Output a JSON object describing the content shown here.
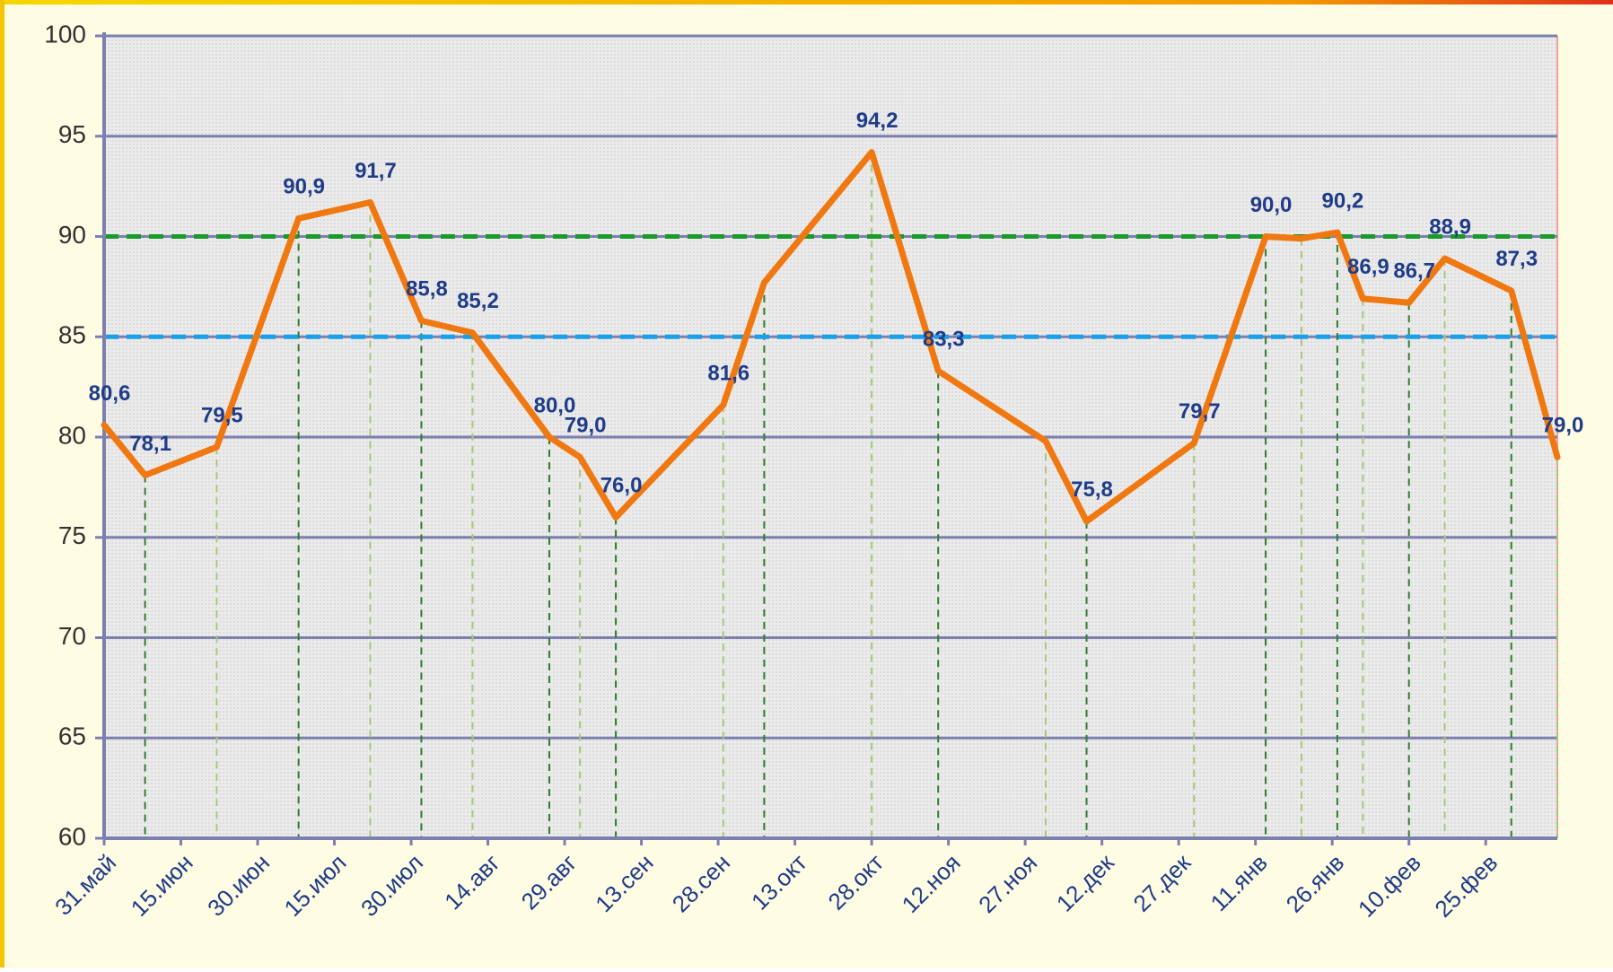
{
  "chart_data": {
    "type": "line",
    "x": [
      0,
      8,
      22,
      38,
      52,
      62,
      72,
      87,
      93,
      100,
      121,
      129,
      150,
      163,
      184,
      192,
      213,
      227,
      234,
      241,
      246,
      255,
      262,
      275,
      284
    ],
    "series": [
      {
        "color": "#f07810",
        "values": [
          80.6,
          78.1,
          79.5,
          90.9,
          91.7,
          85.8,
          85.2,
          80.0,
          79.0,
          76.0,
          81.6,
          87.7,
          94.2,
          83.3,
          79.8,
          75.8,
          79.7,
          90.0,
          89.9,
          90.2,
          86.9,
          86.7,
          88.9,
          87.3,
          79.0
        ],
        "value_labels": [
          "80,6",
          "78,1",
          "79,5",
          "90,9",
          "91,7",
          "85,8",
          "85,2",
          "80,0",
          "79,0",
          "76,0",
          "81,6",
          null,
          "94,2",
          "83,3",
          null,
          "75,8",
          "79,7",
          "90,0",
          null,
          "90,2",
          "86,9",
          "86,7",
          "88,9",
          "87,3",
          "79,0"
        ]
      }
    ],
    "xlim": [
      0,
      284
    ],
    "xticks": [
      {
        "value": 0,
        "label": "31.май"
      },
      {
        "value": 15,
        "label": "15.июн"
      },
      {
        "value": 30,
        "label": "30.июн"
      },
      {
        "value": 45,
        "label": "15.июл"
      },
      {
        "value": 60,
        "label": "30.июл"
      },
      {
        "value": 75,
        "label": "14.авг"
      },
      {
        "value": 90,
        "label": "29.авг"
      },
      {
        "value": 105,
        "label": "13.сен"
      },
      {
        "value": 120,
        "label": "28.сен"
      },
      {
        "value": 135,
        "label": "13.окт"
      },
      {
        "value": 150,
        "label": "28.окт"
      },
      {
        "value": 165,
        "label": "12.ноя"
      },
      {
        "value": 180,
        "label": "27.ноя"
      },
      {
        "value": 195,
        "label": "12.дек"
      },
      {
        "value": 210,
        "label": "27.дек"
      },
      {
        "value": 225,
        "label": "11.янв"
      },
      {
        "value": 240,
        "label": "26.янв"
      },
      {
        "value": 255,
        "label": "10.фев"
      },
      {
        "value": 270,
        "label": "25.фев"
      }
    ],
    "ylim": [
      60,
      100
    ],
    "yticks": [
      60,
      65,
      70,
      75,
      80,
      85,
      90,
      95,
      100
    ],
    "grid": true,
    "reference_lines": [
      {
        "value": 90,
        "color": "#1a9a2a"
      },
      {
        "value": 85,
        "color": "#1aa0e8"
      }
    ]
  }
}
